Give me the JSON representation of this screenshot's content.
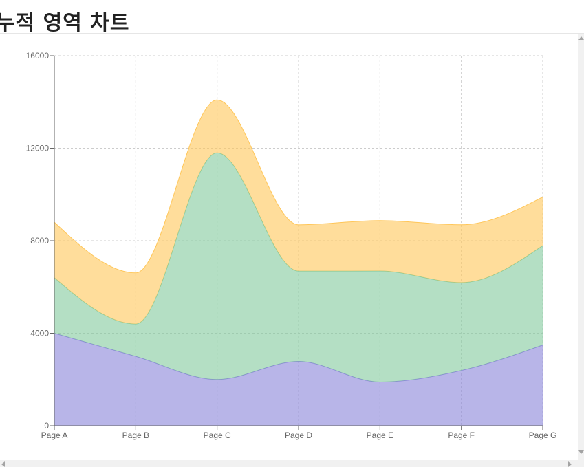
{
  "page": {
    "title": "누적 영역 차트"
  },
  "chart_data": {
    "type": "area",
    "stacked": true,
    "categories": [
      "Page A",
      "Page B",
      "Page C",
      "Page D",
      "Page E",
      "Page F",
      "Page G"
    ],
    "series": [
      {
        "color": "#8884d8",
        "values": [
          4000,
          3000,
          2000,
          2780,
          1890,
          2390,
          3490
        ]
      },
      {
        "color": "#82ca9d",
        "values": [
          2400,
          1398,
          9800,
          3908,
          4800,
          3800,
          4300
        ]
      },
      {
        "color": "#ffc658",
        "values": [
          2400,
          2210,
          2290,
          2000,
          2181,
          2500,
          2100
        ]
      }
    ],
    "y_ticks": [
      0,
      4000,
      8000,
      12000,
      16000
    ],
    "ylim": [
      0,
      16000
    ],
    "grid": true,
    "grid_style": "dashed",
    "title": "",
    "xlabel": "",
    "ylabel": ""
  },
  "scrollbars": {
    "vertical": {
      "up_icon": "arrow-up-icon",
      "down_icon": "arrow-down-icon"
    },
    "horizontal": {
      "left_icon": "arrow-left-icon",
      "right_icon": "arrow-right-icon"
    }
  }
}
